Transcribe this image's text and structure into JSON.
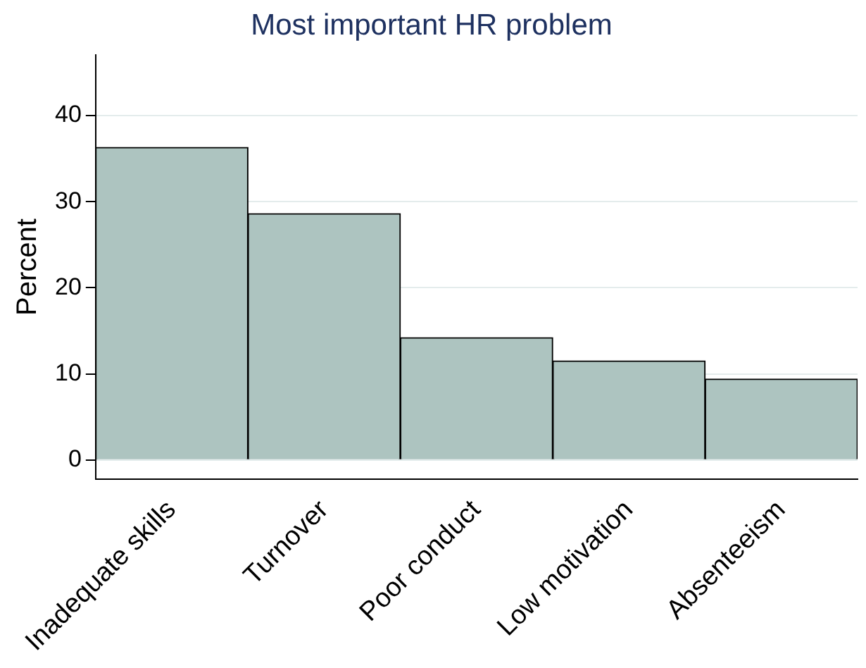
{
  "chart_data": {
    "type": "bar",
    "title": "Most important HR problem",
    "ylabel": "Percent",
    "categories": [
      "Inadequate skills",
      "Turnover",
      "Poor conduct",
      "Low motivation",
      "Absenteeism"
    ],
    "values": [
      36.3,
      28.6,
      14.2,
      11.5,
      9.4
    ],
    "color": "#adc4c0",
    "ylim": [
      -2.2,
      47
    ],
    "yticks": [
      0,
      10,
      20,
      30,
      40
    ],
    "grid": "y",
    "legend": false
  }
}
